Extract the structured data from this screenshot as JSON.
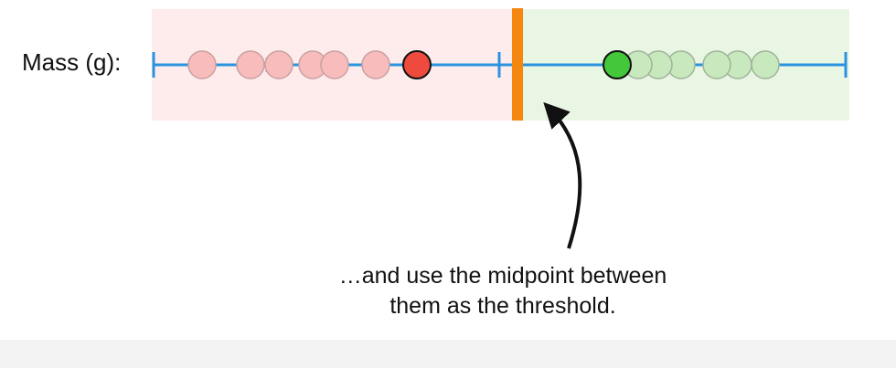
{
  "axis": {
    "label": "Mass (g):",
    "line_color": "#2a93e0"
  },
  "regions": {
    "left_color": "#fdeceb",
    "right_color": "#eaf6e4"
  },
  "threshold": {
    "color": "#f5860f"
  },
  "observations": {
    "red_faded": {
      "fill": "#f8bcbc",
      "stroke": "#c9a0a0"
    },
    "red_nearest": {
      "fill": "#ee4a3d",
      "stroke": "#111111"
    },
    "green_nearest": {
      "fill": "#44c73a",
      "stroke": "#111111"
    },
    "green_faded": {
      "fill": "#c8e8bd",
      "stroke": "#9fb39a"
    }
  },
  "annotation": {
    "line1": "…and use the midpoint between",
    "line2": "them as the threshold.",
    "arrow_color": "#111111"
  }
}
